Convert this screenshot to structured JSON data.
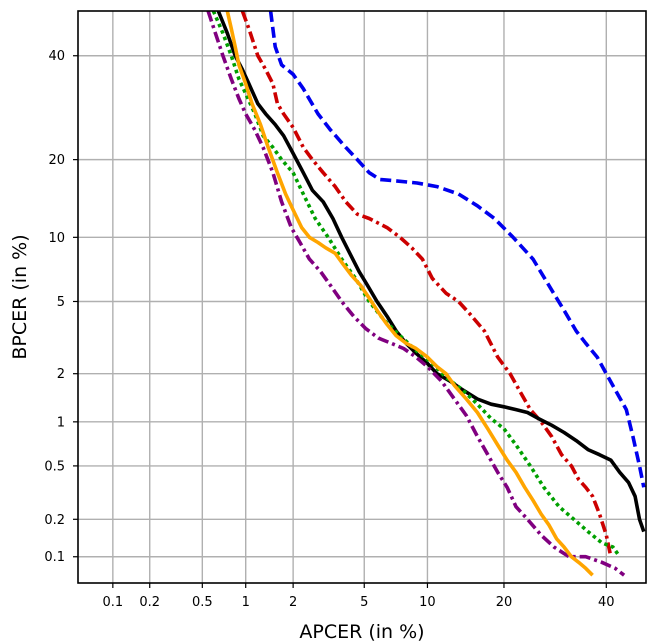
{
  "chart_data": {
    "type": "line",
    "title": "",
    "xlabel": "APCER (in %)",
    "ylabel": "BPCER (in %)",
    "x_scale": "probit",
    "y_scale": "probit",
    "xlim": [
      0.05,
      49
    ],
    "ylim": [
      0.06,
      50
    ],
    "x_ticks": [
      0.1,
      0.2,
      0.5,
      1,
      2,
      5,
      10,
      20,
      40
    ],
    "x_tick_labels": [
      "0.1",
      "0.2",
      "0.5",
      "1",
      "2",
      "5",
      "10",
      "20",
      "40"
    ],
    "y_ticks": [
      0.1,
      0.2,
      0.5,
      1,
      2,
      5,
      10,
      20,
      40
    ],
    "y_tick_labels": [
      "0.1",
      "0.2",
      "0.5",
      "1",
      "2",
      "5",
      "10",
      "20",
      "40"
    ],
    "grid": true,
    "legend": "none",
    "series": [
      {
        "color": "#0000ee",
        "style": "dashed",
        "x": [
          1.45,
          1.55,
          1.7,
          2.0,
          2.3,
          2.8,
          3.3,
          4.0,
          4.6,
          5.3,
          6.0,
          7.2,
          9.0,
          11.0,
          13.5,
          16.0,
          18.5,
          21.5,
          25.0,
          28.0,
          31.0,
          33.5,
          35.5,
          38.0,
          40.0,
          42.0,
          44.5,
          46.0,
          47.5,
          48.5
        ],
        "y": [
          50.0,
          42.0,
          38.0,
          36.0,
          33.0,
          28.0,
          25.0,
          22.0,
          20.0,
          18.0,
          17.0,
          16.8,
          16.5,
          16.0,
          15.0,
          13.5,
          12.0,
          10.0,
          8.0,
          6.0,
          4.5,
          3.5,
          3.0,
          2.5,
          2.0,
          1.6,
          1.2,
          0.8,
          0.5,
          0.35
        ]
      },
      {
        "color": "#cc0000",
        "style": "dashdot",
        "x": [
          0.95,
          1.05,
          1.2,
          1.35,
          1.5,
          1.6,
          1.75,
          2.0,
          2.3,
          2.6,
          3.0,
          3.5,
          4.0,
          4.6,
          5.3,
          6.5,
          7.5,
          8.5,
          9.5,
          10.5,
          12.0,
          13.5,
          15.0,
          17.0,
          19.0,
          21.0,
          22.5,
          24.5,
          26.5,
          28.5,
          30.5,
          32.5,
          34.0,
          35.5,
          37.0,
          38.5,
          40.0,
          41.0
        ],
        "y": [
          50.0,
          46.0,
          40.0,
          37.0,
          34.0,
          30.0,
          28.0,
          25.5,
          22.0,
          20.0,
          18.0,
          16.0,
          14.0,
          12.5,
          12.0,
          11.0,
          10.0,
          9.0,
          8.0,
          6.5,
          5.5,
          5.0,
          4.3,
          3.5,
          2.5,
          2.0,
          1.6,
          1.2,
          1.0,
          0.8,
          0.6,
          0.5,
          0.4,
          0.35,
          0.3,
          0.22,
          0.15,
          0.1
        ]
      },
      {
        "color": "#000000",
        "style": "solid",
        "x": [
          0.65,
          0.75,
          0.85,
          0.95,
          1.05,
          1.2,
          1.35,
          1.55,
          1.75,
          2.0,
          2.3,
          2.6,
          3.0,
          3.4,
          3.8,
          4.2,
          4.7,
          5.2,
          5.8,
          6.5,
          7.2,
          8.0,
          9.0,
          10.0,
          11.0,
          12.5,
          14.0,
          16.0,
          18.0,
          20.0,
          22.0,
          24.0,
          26.0,
          28.5,
          31.0,
          33.5,
          36.0,
          38.5,
          41.0,
          43.0,
          45.0,
          46.5,
          47.5,
          48.5
        ],
        "y": [
          50.0,
          45.0,
          40.0,
          37.0,
          34.0,
          30.0,
          28.0,
          26.0,
          24.0,
          21.0,
          18.0,
          15.5,
          14.0,
          12.0,
          10.0,
          8.5,
          7.0,
          6.0,
          5.0,
          4.2,
          3.5,
          3.0,
          2.6,
          2.3,
          2.0,
          1.8,
          1.6,
          1.4,
          1.3,
          1.25,
          1.2,
          1.15,
          1.05,
          0.95,
          0.85,
          0.75,
          0.65,
          0.6,
          0.55,
          0.45,
          0.38,
          0.3,
          0.2,
          0.16
        ]
      },
      {
        "color": "#00a000",
        "style": "dotted",
        "x": [
          0.6,
          0.7,
          0.8,
          0.9,
          1.0,
          1.15,
          1.3,
          1.5,
          1.7,
          2.0,
          2.3,
          2.7,
          3.2,
          3.8,
          4.5,
          5.3,
          6.3,
          7.5,
          9.0,
          10.5,
          12.0,
          14.0,
          16.0,
          18.0,
          20.0,
          22.0,
          24.5,
          27.0,
          30.0,
          33.0,
          36.0,
          39.0,
          41.5,
          43.0
        ],
        "y": [
          50.0,
          45.0,
          40.0,
          35.0,
          32.0,
          28.0,
          24.0,
          22.0,
          20.0,
          18.0,
          15.0,
          12.0,
          10.0,
          8.0,
          6.5,
          5.0,
          4.0,
          3.3,
          2.7,
          2.3,
          1.9,
          1.6,
          1.3,
          1.05,
          0.9,
          0.7,
          0.5,
          0.35,
          0.25,
          0.2,
          0.16,
          0.13,
          0.12,
          0.1
        ]
      },
      {
        "color": "#800080",
        "style": "dashdot",
        "x": [
          0.55,
          0.62,
          0.7,
          0.8,
          0.9,
          1.0,
          1.15,
          1.3,
          1.5,
          1.7,
          1.95,
          2.2,
          2.5,
          2.9,
          3.3,
          3.8,
          4.4,
          5.1,
          5.9,
          6.8,
          7.8,
          8.9,
          10.0,
          11.5,
          13.0,
          14.5,
          16.0,
          17.5,
          19.0,
          20.5,
          22.0,
          24.0,
          26.5,
          29.0,
          32.0,
          35.5,
          39.0,
          42.0,
          44.0
        ],
        "y": [
          50.0,
          45.0,
          40.0,
          35.0,
          31.0,
          28.0,
          25.0,
          22.0,
          18.0,
          14.0,
          11.0,
          9.5,
          8.0,
          7.0,
          6.0,
          5.0,
          4.2,
          3.6,
          3.2,
          3.0,
          2.8,
          2.5,
          2.2,
          1.8,
          1.4,
          1.1,
          0.8,
          0.6,
          0.45,
          0.35,
          0.25,
          0.2,
          0.15,
          0.12,
          0.1,
          0.1,
          0.09,
          0.08,
          0.07
        ]
      },
      {
        "color": "#ffa500",
        "style": "solid",
        "x": [
          0.75,
          0.8,
          0.85,
          0.9,
          1.0,
          1.1,
          1.25,
          1.4,
          1.6,
          1.8,
          2.0,
          2.25,
          2.5,
          2.8,
          3.1,
          3.5,
          3.9,
          4.3,
          4.8,
          5.3,
          5.9,
          6.5,
          7.2,
          8.0,
          8.9,
          10.0,
          11.0,
          12.0,
          13.0,
          14.5,
          16.0,
          17.5,
          19.0,
          20.5,
          22.0,
          23.5,
          25.0,
          26.5,
          28.0,
          29.5,
          31.0,
          32.5,
          34.0,
          35.5,
          37.0
        ],
        "y": [
          50.0,
          46.0,
          42.0,
          38.0,
          34.0,
          30.0,
          26.0,
          22.0,
          18.0,
          15.0,
          13.0,
          11.0,
          10.0,
          9.5,
          9.0,
          8.5,
          7.5,
          6.7,
          6.0,
          5.2,
          4.4,
          3.8,
          3.3,
          3.0,
          2.8,
          2.5,
          2.2,
          2.0,
          1.7,
          1.4,
          1.15,
          0.9,
          0.7,
          0.55,
          0.45,
          0.35,
          0.28,
          0.22,
          0.18,
          0.14,
          0.12,
          0.1,
          0.09,
          0.08,
          0.07
        ]
      }
    ]
  }
}
